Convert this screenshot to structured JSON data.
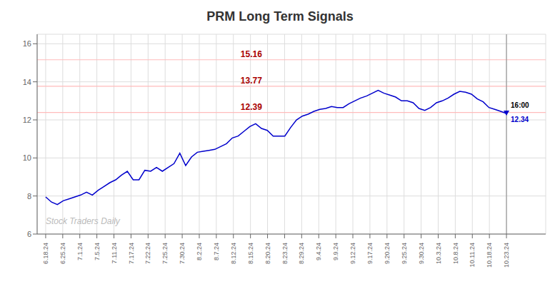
{
  "chart_data": {
    "type": "line",
    "title": "PRM Long Term Signals",
    "color": "#0000cc",
    "grid": true,
    "x": [
      0,
      0.3418,
      0.6835,
      1.0253,
      1.3671,
      1.7089,
      2.0506,
      2.3924,
      2.7342,
      3.0759,
      3.4177,
      3.7595,
      4.1013,
      4.443,
      4.7848,
      5.1266,
      5.4684,
      5.8101,
      6.1519,
      6.4937,
      6.8354,
      7.1772,
      7.519,
      7.8608,
      8.2025,
      8.5443,
      8.8861,
      9.2278,
      9.5696,
      9.9114,
      10.2532,
      10.5949,
      10.9367,
      11.2785,
      11.6203,
      11.962,
      12.3038,
      12.6456,
      12.9873,
      13.3291,
      13.6709,
      14.0127,
      14.3544,
      14.6962,
      15.038,
      15.3797,
      15.7215,
      16.0633,
      16.4051,
      16.7468,
      17.0886,
      17.4304,
      17.7722,
      18.1139,
      18.4557,
      18.7975,
      19.1392,
      19.481,
      19.8228,
      20.1646,
      20.5063,
      20.8481,
      21.1899,
      21.5316,
      21.8734,
      22.2152,
      22.557,
      22.8987,
      23.2405,
      23.5823,
      23.9241,
      24.2658,
      24.6076,
      24.9494,
      25.2911,
      25.6329,
      25.9747,
      26.3165,
      26.6582,
      27
    ],
    "values": [
      7.95,
      7.68,
      7.55,
      7.75,
      7.85,
      7.95,
      8.05,
      8.2,
      8.05,
      8.3,
      8.5,
      8.7,
      8.85,
      9.1,
      9.3,
      8.85,
      8.85,
      9.35,
      9.3,
      9.5,
      9.3,
      9.5,
      9.7,
      10.25,
      9.6,
      10.05,
      10.3,
      10.35,
      10.4,
      10.45,
      10.6,
      10.75,
      11.05,
      11.15,
      11.4,
      11.65,
      11.8,
      11.55,
      11.45,
      11.15,
      11.15,
      11.15,
      11.6,
      12.0,
      12.2,
      12.3,
      12.45,
      12.55,
      12.6,
      12.7,
      12.65,
      12.65,
      12.85,
      13.0,
      13.15,
      13.25,
      13.4,
      13.55,
      13.4,
      13.3,
      13.2,
      13.0,
      13.0,
      12.9,
      12.6,
      12.5,
      12.65,
      12.9,
      13.0,
      13.15,
      13.35,
      13.5,
      13.45,
      13.35,
      13.1,
      12.95,
      12.65,
      12.55,
      12.45,
      12.34
    ],
    "xlim": [
      -0.5,
      29.3
    ],
    "xticks": [
      {
        "value": 0,
        "label": "6.18.24"
      },
      {
        "value": 1,
        "label": "6.25.24"
      },
      {
        "value": 2,
        "label": "7.1.24"
      },
      {
        "value": 3,
        "label": "7.5.24"
      },
      {
        "value": 4,
        "label": "7.11.24"
      },
      {
        "value": 5,
        "label": "7.17.24"
      },
      {
        "value": 6,
        "label": "7.22.24"
      },
      {
        "value": 7,
        "label": "7.25.24"
      },
      {
        "value": 8,
        "label": "7.30.24"
      },
      {
        "value": 9,
        "label": "8.2.24"
      },
      {
        "value": 10,
        "label": "8.7.24"
      },
      {
        "value": 11,
        "label": "8.12.24"
      },
      {
        "value": 12,
        "label": "8.15.24"
      },
      {
        "value": 13,
        "label": "8.20.24"
      },
      {
        "value": 14,
        "label": "8.23.24"
      },
      {
        "value": 15,
        "label": "8.29.24"
      },
      {
        "value": 16,
        "label": "9.4.24"
      },
      {
        "value": 17,
        "label": "9.9.24"
      },
      {
        "value": 18,
        "label": "9.12.24"
      },
      {
        "value": 19,
        "label": "9.17.24"
      },
      {
        "value": 20,
        "label": "9.20.24"
      },
      {
        "value": 21,
        "label": "9.25.24"
      },
      {
        "value": 22,
        "label": "9.30.24"
      },
      {
        "value": 23,
        "label": "10.3.24"
      },
      {
        "value": 24,
        "label": "10.8.24"
      },
      {
        "value": 25,
        "label": "10.11.24"
      },
      {
        "value": 26,
        "label": "10.18.24"
      },
      {
        "value": 27,
        "label": "10.23.24"
      }
    ],
    "ylim": [
      6,
      16.5
    ],
    "yticks": [
      6,
      8,
      10,
      12,
      14,
      16
    ],
    "hlines": {
      "values": [
        15.16,
        13.77,
        12.39
      ],
      "color": "#ffbbbb",
      "label_color": "#aa0000"
    },
    "vline": {
      "x": 27,
      "color": "#888888"
    },
    "annotations": [
      {
        "text": "Stock Traders Daily",
        "color": "#bbbbbb"
      },
      {
        "text": "16:00",
        "x": 27,
        "y": 12.34,
        "color": "#000000"
      },
      {
        "text": "12.34",
        "x": 27,
        "y": 12.34,
        "color": "#0000cc"
      }
    ]
  }
}
